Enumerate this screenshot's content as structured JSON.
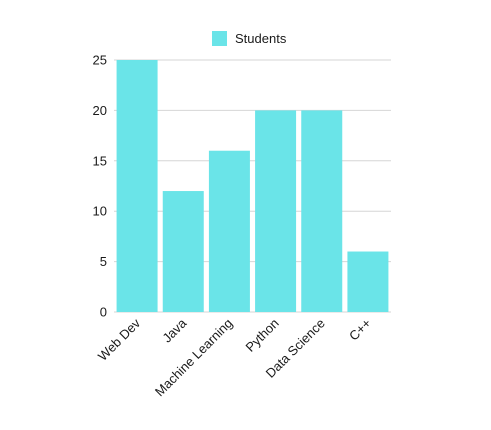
{
  "chart_data": {
    "type": "bar",
    "categories": [
      "Web Dev",
      "Java",
      "Machine Learning",
      "Python",
      "Data Science",
      "C++"
    ],
    "series": [
      {
        "name": "Students",
        "values": [
          25,
          12,
          16,
          20,
          20,
          6
        ],
        "color": "#6ae4e8"
      }
    ],
    "title": "",
    "xlabel": "",
    "ylabel": "",
    "ylim": [
      0,
      25
    ],
    "yticks": [
      0,
      5,
      10,
      15,
      20,
      25
    ],
    "grid": true,
    "legend_position": "top-center"
  }
}
